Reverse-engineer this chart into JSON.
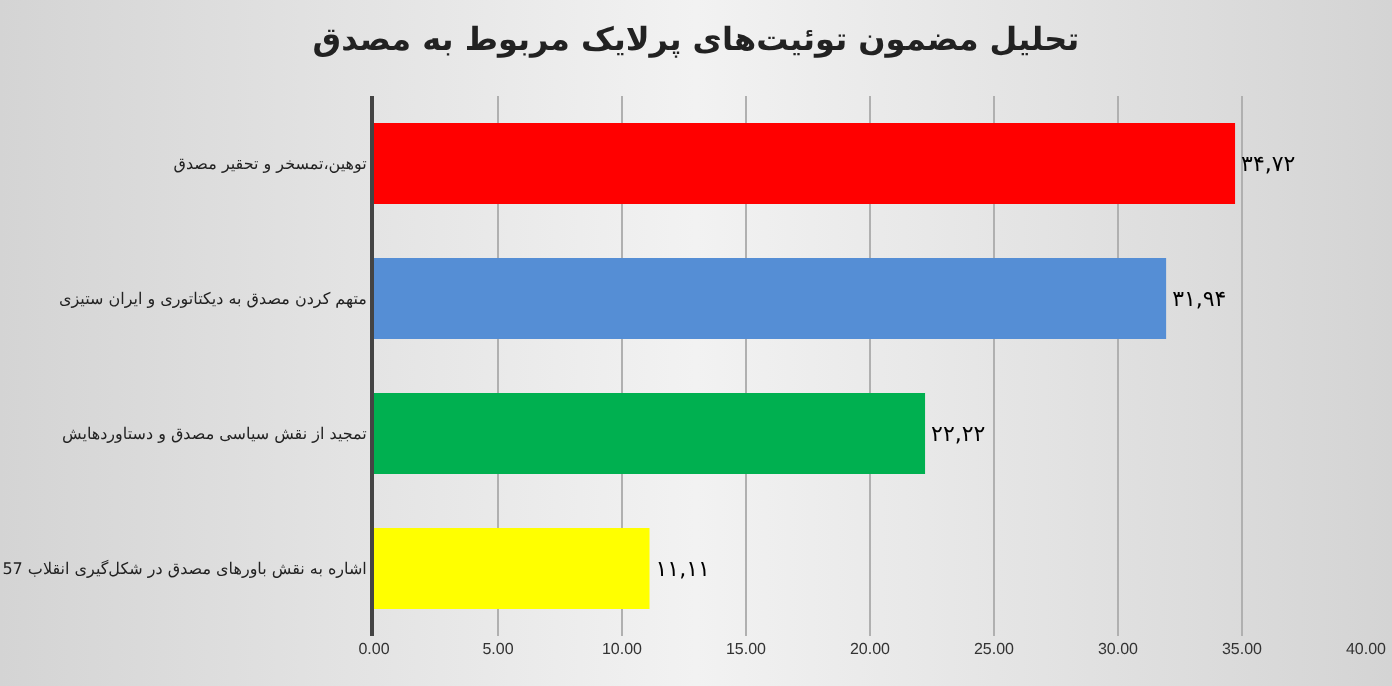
{
  "chart_data": {
    "type": "bar",
    "orientation": "horizontal",
    "title": "تحلیل مضمون توئیت‌های پرلایک مربوط به مصدق",
    "categories": [
      "توهین،تمسخر و تحقیر مصدق",
      "متهم کردن مصدق به دیکتاتوری و ایران ستیزی",
      "تمجید از نقش سیاسی مصدق و دستاوردهایش",
      "اشاره به نقش باورهای مصدق در شکل‌گیری انقلاب 57"
    ],
    "values": [
      34.72,
      31.94,
      22.22,
      11.11
    ],
    "colors": [
      "#ff0000",
      "#558ed5",
      "#00b050",
      "#ffff00"
    ],
    "value_labels": [
      "۳۴,۷۲",
      "۳۱,۹۴",
      "۲۲,۲۲",
      "۱۱,۱۱"
    ],
    "xlim": [
      0,
      40
    ],
    "xticks": [
      {
        "value": 0,
        "label": "0.00"
      },
      {
        "value": 5,
        "label": "5.00"
      },
      {
        "value": 10,
        "label": "10.00"
      },
      {
        "value": 15,
        "label": "15.00"
      },
      {
        "value": 20,
        "label": "20.00"
      },
      {
        "value": 25,
        "label": "25.00"
      },
      {
        "value": 30,
        "label": "30.00"
      },
      {
        "value": 35,
        "label": "35.00"
      },
      {
        "value": 40,
        "label": "40.00"
      }
    ],
    "grid": "x",
    "legend": false
  }
}
